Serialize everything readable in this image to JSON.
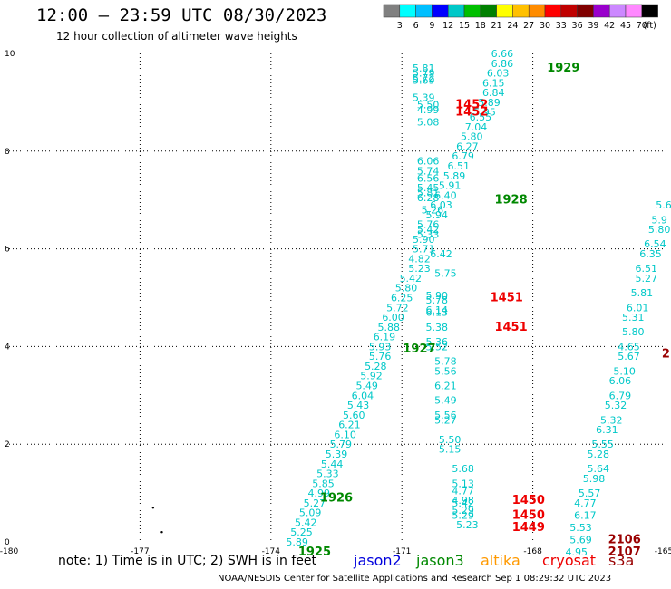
{
  "header": {
    "title": "12:00 – 23:59 UTC 08/30/2023",
    "subtitle": "12 hour collection of altimeter wave heights"
  },
  "color_scale": {
    "labels": [
      "3",
      "6",
      "9",
      "12",
      "15",
      "18",
      "21",
      "24",
      "27",
      "30",
      "33",
      "36",
      "39",
      "42",
      "45",
      "70",
      "(ft)"
    ],
    "colors": [
      "#808080",
      "#00ffff",
      "#00bfff",
      "#0000ff",
      "#00c8c8",
      "#00c000",
      "#008000",
      "#ffff00",
      "#ffc000",
      "#ff8c00",
      "#ff0000",
      "#c00000",
      "#800000",
      "#9900cc",
      "#cc88ff",
      "#ff88ff",
      "#000000"
    ]
  },
  "note": "note:  1) Time is in UTC;  2) SWH is in feet",
  "satellites": [
    {
      "name": "jason2",
      "color": "#0000dd"
    },
    {
      "name": "jason3",
      "color": "#008800"
    },
    {
      "name": "altika",
      "color": "#ff9900"
    },
    {
      "name": "cryosat",
      "color": "#ee0000"
    },
    {
      "name": "s3a",
      "color": "#990000"
    }
  ],
  "footer": "NOAA/NESDIS Center for Satellite Applications and Research    Sep  1 08:29:32 UTC 2023",
  "chart_data": {
    "type": "scatter",
    "xlim": [
      -180,
      -165
    ],
    "ylim": [
      0,
      10
    ],
    "x_ticks": [
      "-180",
      "-177",
      "-174",
      "-171",
      "-168",
      "-165"
    ],
    "y_ticks": [
      "0",
      "2",
      "4",
      "6",
      "8",
      "10"
    ],
    "grid": true,
    "point_color": "#00c8c8",
    "points": [
      {
        "x": -170.5,
        "y": 9.7,
        "label": "5.81"
      },
      {
        "x": -170.5,
        "y": 9.6,
        "label": "5.79"
      },
      {
        "x": -170.5,
        "y": 9.5,
        "label": "5.72"
      },
      {
        "x": -170.5,
        "y": 9.45,
        "label": "5.69"
      },
      {
        "x": -170.5,
        "y": 9.1,
        "label": "5.39"
      },
      {
        "x": -170.4,
        "y": 8.95,
        "label": "5.50"
      },
      {
        "x": -170.4,
        "y": 8.85,
        "label": "4.99"
      },
      {
        "x": -170.4,
        "y": 8.6,
        "label": "5.08"
      },
      {
        "x": -168.7,
        "y": 10.0,
        "label": "6.66"
      },
      {
        "x": -168.7,
        "y": 9.8,
        "label": "6.86"
      },
      {
        "x": -168.8,
        "y": 9.6,
        "label": "6.03"
      },
      {
        "x": -168.9,
        "y": 9.4,
        "label": "6.15"
      },
      {
        "x": -168.9,
        "y": 9.2,
        "label": "6.84"
      },
      {
        "x": -169.0,
        "y": 9.0,
        "label": "5.89"
      },
      {
        "x": -169.1,
        "y": 8.8,
        "label": "5.95"
      },
      {
        "x": -169.2,
        "y": 8.7,
        "label": "6.55"
      },
      {
        "x": -169.3,
        "y": 8.5,
        "label": "7.04"
      },
      {
        "x": -169.4,
        "y": 8.3,
        "label": "5.80"
      },
      {
        "x": -169.5,
        "y": 8.1,
        "label": "6.27"
      },
      {
        "x": -169.6,
        "y": 7.9,
        "label": "6.79"
      },
      {
        "x": -169.7,
        "y": 7.7,
        "label": "6.51"
      },
      {
        "x": -169.8,
        "y": 7.5,
        "label": "5.89"
      },
      {
        "x": -169.9,
        "y": 7.3,
        "label": "5.91"
      },
      {
        "x": -170.0,
        "y": 7.1,
        "label": "6.40"
      },
      {
        "x": -170.1,
        "y": 6.9,
        "label": "6.03"
      },
      {
        "x": -170.2,
        "y": 6.7,
        "label": "5.94"
      },
      {
        "x": -170.4,
        "y": 7.8,
        "label": "6.06"
      },
      {
        "x": -170.4,
        "y": 7.6,
        "label": "5.74"
      },
      {
        "x": -170.4,
        "y": 7.45,
        "label": "6.56"
      },
      {
        "x": -170.4,
        "y": 7.25,
        "label": "5.45"
      },
      {
        "x": -170.4,
        "y": 7.15,
        "label": "5.81"
      },
      {
        "x": -170.4,
        "y": 7.05,
        "label": "6.28"
      },
      {
        "x": -170.3,
        "y": 6.8,
        "label": "5.26"
      },
      {
        "x": -170.4,
        "y": 6.5,
        "label": "5.76"
      },
      {
        "x": -170.4,
        "y": 6.4,
        "label": "5.42"
      },
      {
        "x": -170.4,
        "y": 6.3,
        "label": "5.33"
      },
      {
        "x": -170.5,
        "y": 6.2,
        "label": "5.90"
      },
      {
        "x": -170.5,
        "y": 6.0,
        "label": "5.71"
      },
      {
        "x": -170.6,
        "y": 5.8,
        "label": "4.82"
      },
      {
        "x": -170.1,
        "y": 5.9,
        "label": "6.42"
      },
      {
        "x": -170.6,
        "y": 5.6,
        "label": "5.23"
      },
      {
        "x": -170.0,
        "y": 5.5,
        "label": "5.75"
      },
      {
        "x": -170.8,
        "y": 5.4,
        "label": "5.42"
      },
      {
        "x": -170.9,
        "y": 5.2,
        "label": "5.80"
      },
      {
        "x": -171.0,
        "y": 5.0,
        "label": "6.25"
      },
      {
        "x": -171.1,
        "y": 4.8,
        "label": "5.72"
      },
      {
        "x": -171.2,
        "y": 4.6,
        "label": "6.00"
      },
      {
        "x": -171.3,
        "y": 4.4,
        "label": "5.88"
      },
      {
        "x": -171.4,
        "y": 4.2,
        "label": "6.19"
      },
      {
        "x": -171.5,
        "y": 4.0,
        "label": "5.93"
      },
      {
        "x": -171.5,
        "y": 3.8,
        "label": "5.76"
      },
      {
        "x": -171.6,
        "y": 3.6,
        "label": "5.28"
      },
      {
        "x": -171.7,
        "y": 3.4,
        "label": "5.92"
      },
      {
        "x": -171.8,
        "y": 3.2,
        "label": "5.49"
      },
      {
        "x": -171.9,
        "y": 3.0,
        "label": "6.04"
      },
      {
        "x": -172.0,
        "y": 2.8,
        "label": "5.43"
      },
      {
        "x": -172.1,
        "y": 2.6,
        "label": "5.60"
      },
      {
        "x": -172.2,
        "y": 2.4,
        "label": "6.21"
      },
      {
        "x": -172.3,
        "y": 2.2,
        "label": "6.10"
      },
      {
        "x": -172.4,
        "y": 2.0,
        "label": "5.79"
      },
      {
        "x": -172.5,
        "y": 1.8,
        "label": "5.39"
      },
      {
        "x": -172.6,
        "y": 1.6,
        "label": "5.44"
      },
      {
        "x": -172.7,
        "y": 1.4,
        "label": "5.33"
      },
      {
        "x": -172.8,
        "y": 1.2,
        "label": "5.85"
      },
      {
        "x": -172.9,
        "y": 1.0,
        "label": "4.99"
      },
      {
        "x": -173.0,
        "y": 0.8,
        "label": "5.27"
      },
      {
        "x": -173.1,
        "y": 0.6,
        "label": "5.09"
      },
      {
        "x": -173.2,
        "y": 0.4,
        "label": "5.42"
      },
      {
        "x": -173.3,
        "y": 0.2,
        "label": "5.25"
      },
      {
        "x": -173.4,
        "y": 0.0,
        "label": "5.89"
      },
      {
        "x": -170.2,
        "y": 5.05,
        "label": "5.90"
      },
      {
        "x": -170.2,
        "y": 4.95,
        "label": "5.78"
      },
      {
        "x": -170.2,
        "y": 4.75,
        "label": "6.14"
      },
      {
        "x": -170.2,
        "y": 4.7,
        "label": "6.13"
      },
      {
        "x": -170.2,
        "y": 4.4,
        "label": "5.38"
      },
      {
        "x": -170.2,
        "y": 4.1,
        "label": "5.36"
      },
      {
        "x": -170.2,
        "y": 4.0,
        "label": "5.52"
      },
      {
        "x": -170.0,
        "y": 3.7,
        "label": "5.78"
      },
      {
        "x": -170.0,
        "y": 3.5,
        "label": "5.56"
      },
      {
        "x": -170.0,
        "y": 3.2,
        "label": "6.21"
      },
      {
        "x": -170.0,
        "y": 2.9,
        "label": "5.49"
      },
      {
        "x": -170.0,
        "y": 2.6,
        "label": "5.56"
      },
      {
        "x": -170.0,
        "y": 2.5,
        "label": "5.27"
      },
      {
        "x": -169.9,
        "y": 2.1,
        "label": "5.50"
      },
      {
        "x": -169.9,
        "y": 1.9,
        "label": "5.15"
      },
      {
        "x": -169.6,
        "y": 1.5,
        "label": "5.68"
      },
      {
        "x": -169.6,
        "y": 1.2,
        "label": "5.13"
      },
      {
        "x": -169.6,
        "y": 1.05,
        "label": "4.77"
      },
      {
        "x": -169.6,
        "y": 0.85,
        "label": "4.98"
      },
      {
        "x": -169.6,
        "y": 0.8,
        "label": "5.42"
      },
      {
        "x": -169.6,
        "y": 0.65,
        "label": "5.29"
      },
      {
        "x": -169.6,
        "y": 0.55,
        "label": "5.29"
      },
      {
        "x": -169.5,
        "y": 0.35,
        "label": "5.23"
      },
      {
        "x": -165.0,
        "y": 6.9,
        "label": "5.6"
      },
      {
        "x": -165.1,
        "y": 6.6,
        "label": "5.9"
      },
      {
        "x": -165.1,
        "y": 6.4,
        "label": "5.80"
      },
      {
        "x": -165.2,
        "y": 6.1,
        "label": "6.54"
      },
      {
        "x": -165.3,
        "y": 5.9,
        "label": "6.35"
      },
      {
        "x": -165.4,
        "y": 5.6,
        "label": "6.51"
      },
      {
        "x": -165.4,
        "y": 5.4,
        "label": "5.27"
      },
      {
        "x": -165.5,
        "y": 5.1,
        "label": "5.81"
      },
      {
        "x": -165.6,
        "y": 4.8,
        "label": "6.01"
      },
      {
        "x": -165.7,
        "y": 4.6,
        "label": "5.31"
      },
      {
        "x": -165.7,
        "y": 4.3,
        "label": "5.80"
      },
      {
        "x": -165.8,
        "y": 4.0,
        "label": "4.65"
      },
      {
        "x": -165.8,
        "y": 3.8,
        "label": "5.67"
      },
      {
        "x": -165.9,
        "y": 3.5,
        "label": "5.10"
      },
      {
        "x": -166.0,
        "y": 3.3,
        "label": "6.06"
      },
      {
        "x": -166.0,
        "y": 3.0,
        "label": "6.79"
      },
      {
        "x": -166.1,
        "y": 2.8,
        "label": "5.32"
      },
      {
        "x": -166.2,
        "y": 2.5,
        "label": "5.32"
      },
      {
        "x": -166.3,
        "y": 2.3,
        "label": "6.31"
      },
      {
        "x": -166.4,
        "y": 2.0,
        "label": "5.55"
      },
      {
        "x": -166.5,
        "y": 1.8,
        "label": "5.28"
      },
      {
        "x": -166.5,
        "y": 1.5,
        "label": "5.64"
      },
      {
        "x": -166.6,
        "y": 1.3,
        "label": "5.98"
      },
      {
        "x": -166.7,
        "y": 1.0,
        "label": "5.57"
      },
      {
        "x": -166.8,
        "y": 0.8,
        "label": "4.77"
      },
      {
        "x": -166.8,
        "y": 0.55,
        "label": "6.17"
      },
      {
        "x": -166.9,
        "y": 0.3,
        "label": "5.53"
      },
      {
        "x": -166.9,
        "y": 0.05,
        "label": "5.69"
      },
      {
        "x": -167.0,
        "y": -0.2,
        "label": "4.95"
      }
    ],
    "annotations": [
      {
        "x": -167.3,
        "y": 9.7,
        "text": "1929",
        "color": "#008800"
      },
      {
        "x": -169.4,
        "y": 8.95,
        "text": "1452",
        "color": "#ee0000"
      },
      {
        "x": -169.4,
        "y": 8.8,
        "text": "1452",
        "color": "#ee0000"
      },
      {
        "x": -168.5,
        "y": 7.0,
        "text": "1928",
        "color": "#008800"
      },
      {
        "x": -168.6,
        "y": 5.0,
        "text": "1451",
        "color": "#ee0000"
      },
      {
        "x": -168.5,
        "y": 4.4,
        "text": "1451",
        "color": "#ee0000"
      },
      {
        "x": -170.6,
        "y": 3.95,
        "text": "1927",
        "color": "#008800"
      },
      {
        "x": -172.5,
        "y": 0.9,
        "text": "1926",
        "color": "#008800"
      },
      {
        "x": -168.1,
        "y": 0.85,
        "text": "1450",
        "color": "#ee0000"
      },
      {
        "x": -168.1,
        "y": 0.55,
        "text": "1450",
        "color": "#ee0000"
      },
      {
        "x": -168.1,
        "y": 0.3,
        "text": "1449",
        "color": "#ee0000"
      },
      {
        "x": -173.0,
        "y": -0.2,
        "text": "1925",
        "color": "#008800"
      },
      {
        "x": -165.9,
        "y": 0.05,
        "text": "2106",
        "color": "#990000"
      },
      {
        "x": -165.9,
        "y": -0.2,
        "text": "2107",
        "color": "#990000"
      },
      {
        "x": -164.95,
        "y": 3.85,
        "text": "2",
        "color": "#990000"
      }
    ],
    "markers": [
      {
        "x": -176.7,
        "y": 0.7
      },
      {
        "x": -176.5,
        "y": 0.2
      }
    ]
  }
}
